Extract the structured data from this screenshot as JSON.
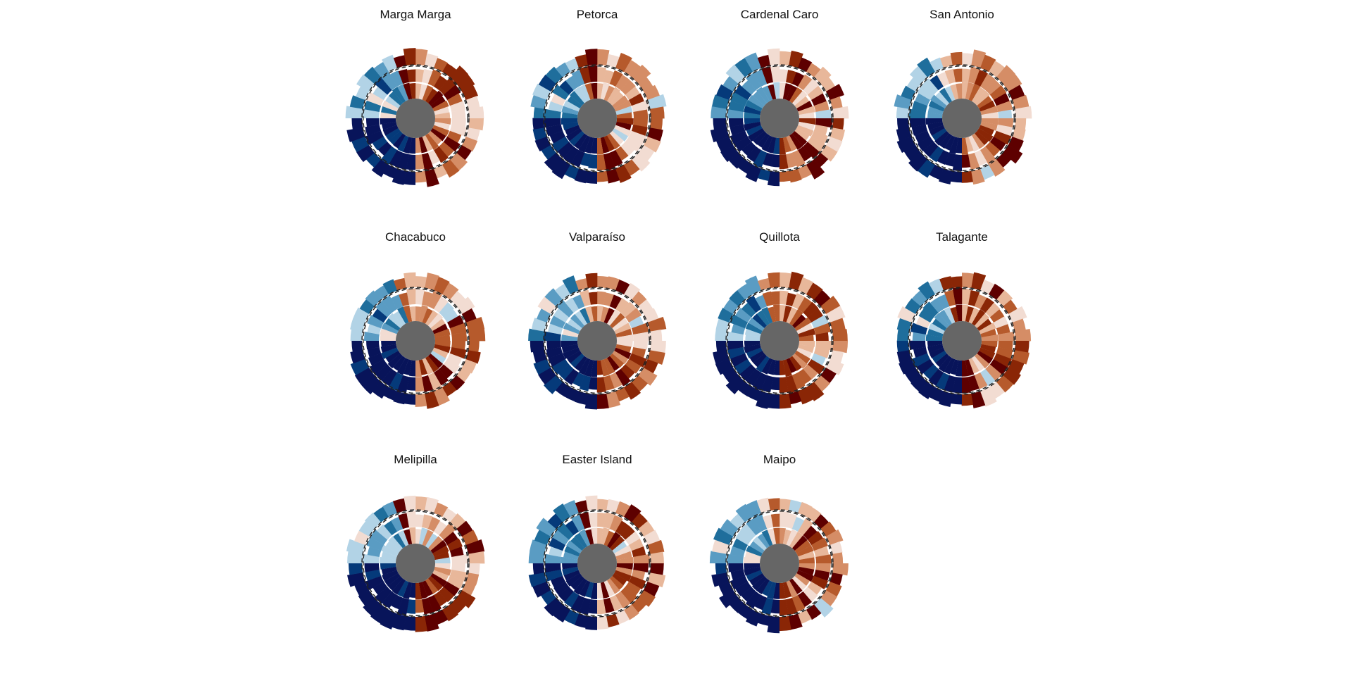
{
  "figure": {
    "description_free": true
  },
  "chart_data": {
    "type": "radial-stripes",
    "center_color": "#666666",
    "ring_style": "dashed",
    "palette": [
      "#08145a",
      "#053a7a",
      "#1f6e9c",
      "#5a9cc3",
      "#b2d3e6",
      "#f2dcd2",
      "#e8b79a",
      "#d58d66",
      "#b65a2c",
      "#8a2606",
      "#5e0000"
    ],
    "panels": [
      {
        "title": "Marga Marga",
        "seed": 11
      },
      {
        "title": "Petorca",
        "seed": 23
      },
      {
        "title": "Cardenal Caro",
        "seed": 37
      },
      {
        "title": "San Antonio",
        "seed": 41
      },
      {
        "title": "Chacabuco",
        "seed": 53
      },
      {
        "title": "Valparaíso",
        "seed": 67
      },
      {
        "title": "Quillota",
        "seed": 71
      },
      {
        "title": "Talagante",
        "seed": 83
      },
      {
        "title": "Melipilla",
        "seed": 97
      },
      {
        "title": "Easter Island",
        "seed": 101
      },
      {
        "title": "Maipo",
        "seed": 113
      }
    ]
  }
}
